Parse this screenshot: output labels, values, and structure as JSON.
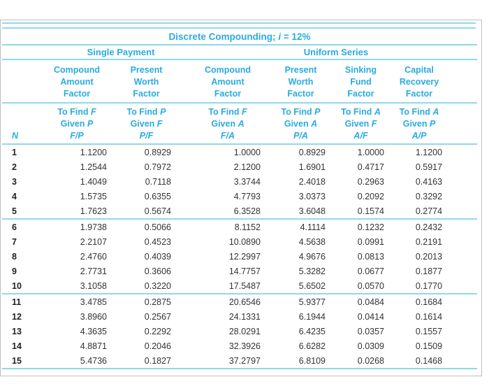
{
  "header": {
    "title_prefix": "Discrete Compounding; ",
    "title_var": "i",
    "title_suffix": " = 12%"
  },
  "groups": {
    "single_payment": "Single Payment",
    "uniform_series": "Uniform Series"
  },
  "labels": {
    "to_find": "To Find",
    "given": "Given",
    "n": "N"
  },
  "columns": [
    {
      "name": "Compound\nAmount\nFactor",
      "find": "F",
      "given": "P",
      "ratio": "F/P"
    },
    {
      "name": "Present\nWorth Factor",
      "find": "P",
      "given": "F",
      "ratio": "P/F"
    },
    {
      "name": "Compound\nAmount\nFactor",
      "find": "F",
      "given": "A",
      "ratio": "F/A"
    },
    {
      "name": "Present\nWorth Factor",
      "find": "P",
      "given": "A",
      "ratio": "P/A"
    },
    {
      "name": "Sinking\nFund\nFactor",
      "find": "A",
      "given": "F",
      "ratio": "A/F"
    },
    {
      "name": "Capital\nRecovery\nFactor",
      "find": "A",
      "given": "P",
      "ratio": "A/P"
    }
  ],
  "rows": [
    {
      "n": "1",
      "values": [
        "1.1200",
        "0.8929",
        "1.0000",
        "0.8929",
        "1.0000",
        "1.1200"
      ]
    },
    {
      "n": "2",
      "values": [
        "1.2544",
        "0.7972",
        "2.1200",
        "1.6901",
        "0.4717",
        "0.5917"
      ]
    },
    {
      "n": "3",
      "values": [
        "1.4049",
        "0.7118",
        "3.3744",
        "2.4018",
        "0.2963",
        "0.4163"
      ]
    },
    {
      "n": "4",
      "values": [
        "1.5735",
        "0.6355",
        "4.7793",
        "3.0373",
        "0.2092",
        "0.3292"
      ]
    },
    {
      "n": "5",
      "values": [
        "1.7623",
        "0.5674",
        "6.3528",
        "3.6048",
        "0.1574",
        "0.2774"
      ]
    },
    {
      "n": "6",
      "values": [
        "1.9738",
        "0.5066",
        "8.1152",
        "4.1114",
        "0.1232",
        "0.2432"
      ]
    },
    {
      "n": "7",
      "values": [
        "2.2107",
        "0.4523",
        "10.0890",
        "4.5638",
        "0.0991",
        "0.2191"
      ]
    },
    {
      "n": "8",
      "values": [
        "2.4760",
        "0.4039",
        "12.2997",
        "4.9676",
        "0.0813",
        "0.2013"
      ]
    },
    {
      "n": "9",
      "values": [
        "2.7731",
        "0.3606",
        "14.7757",
        "5.3282",
        "0.0677",
        "0.1877"
      ]
    },
    {
      "n": "10",
      "values": [
        "3.1058",
        "0.3220",
        "17.5487",
        "5.6502",
        "0.0570",
        "0.1770"
      ]
    },
    {
      "n": "11",
      "values": [
        "3.4785",
        "0.2875",
        "20.6546",
        "5.9377",
        "0.0484",
        "0.1684"
      ]
    },
    {
      "n": "12",
      "values": [
        "3.8960",
        "0.2567",
        "24.1331",
        "6.1944",
        "0.0414",
        "0.1614"
      ]
    },
    {
      "n": "13",
      "values": [
        "4.3635",
        "0.2292",
        "28.0291",
        "6.4235",
        "0.0357",
        "0.1557"
      ]
    },
    {
      "n": "14",
      "values": [
        "4.8871",
        "0.2046",
        "32.3926",
        "6.6282",
        "0.0309",
        "0.1509"
      ]
    },
    {
      "n": "15",
      "values": [
        "5.4736",
        "0.1827",
        "37.2797",
        "6.8109",
        "0.0268",
        "0.1468"
      ]
    }
  ],
  "colors": {
    "accent_text": "#29abe2",
    "rule": "#90d9ea",
    "data_text": "#333333",
    "frame_border": "#bdc0c2"
  }
}
